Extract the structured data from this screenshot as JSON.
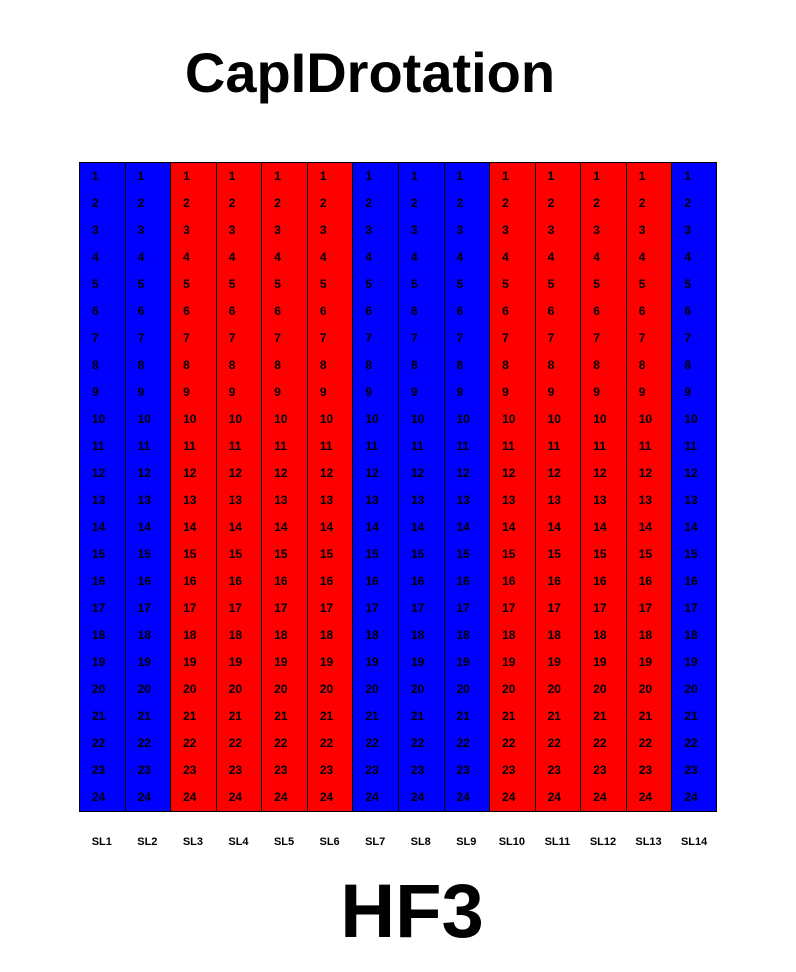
{
  "title": "CapIDrotation",
  "footer": "HF3",
  "colors": {
    "blue": "#0000ff",
    "red": "#ff0000"
  },
  "rows": [
    "1",
    "2",
    "3",
    "4",
    "5",
    "6",
    "7",
    "8",
    "9",
    "10",
    "11",
    "12",
    "13",
    "14",
    "15",
    "16",
    "17",
    "18",
    "19",
    "20",
    "21",
    "22",
    "23",
    "24"
  ],
  "columns": [
    {
      "label": "SL1",
      "color": "blue"
    },
    {
      "label": "SL2",
      "color": "blue"
    },
    {
      "label": "SL3",
      "color": "red"
    },
    {
      "label": "SL4",
      "color": "red"
    },
    {
      "label": "SL5",
      "color": "red"
    },
    {
      "label": "SL6",
      "color": "red"
    },
    {
      "label": "SL7",
      "color": "blue"
    },
    {
      "label": "SL8",
      "color": "blue"
    },
    {
      "label": "SL9",
      "color": "blue"
    },
    {
      "label": "SL10",
      "color": "red"
    },
    {
      "label": "SL11",
      "color": "red"
    },
    {
      "label": "SL12",
      "color": "red"
    },
    {
      "label": "SL13",
      "color": "red"
    },
    {
      "label": "SL14",
      "color": "blue"
    }
  ]
}
